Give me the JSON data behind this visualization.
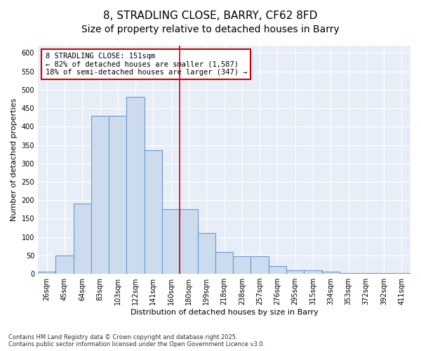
{
  "title": "8, STRADLING CLOSE, BARRY, CF62 8FD",
  "subtitle": "Size of property relative to detached houses in Barry",
  "xlabel": "Distribution of detached houses by size in Barry",
  "ylabel": "Number of detached properties",
  "categories": [
    "26sqm",
    "45sqm",
    "64sqm",
    "83sqm",
    "103sqm",
    "122sqm",
    "141sqm",
    "160sqm",
    "180sqm",
    "199sqm",
    "218sqm",
    "238sqm",
    "257sqm",
    "276sqm",
    "295sqm",
    "315sqm",
    "334sqm",
    "353sqm",
    "372sqm",
    "392sqm",
    "411sqm"
  ],
  "values": [
    5,
    50,
    190,
    430,
    430,
    480,
    335,
    175,
    175,
    110,
    60,
    47,
    47,
    22,
    10,
    10,
    5,
    3,
    3,
    2,
    3
  ],
  "bar_color": "#ccdcee",
  "bar_edge_color": "#6699cc",
  "vline_x": 7.5,
  "vline_color": "#cc0000",
  "annotation_text_line1": "8 STRADLING CLOSE: 151sqm",
  "annotation_text_line2": "← 82% of detached houses are smaller (1,587)",
  "annotation_text_line3": "18% of semi-detached houses are larger (347) →",
  "annotation_box_color": "#cc0000",
  "plot_bg_color": "#e8eef8",
  "fig_bg_color": "#ffffff",
  "ylim": [
    0,
    620
  ],
  "yticks": [
    0,
    50,
    100,
    150,
    200,
    250,
    300,
    350,
    400,
    450,
    500,
    550,
    600
  ],
  "footer": "Contains HM Land Registry data © Crown copyright and database right 2025.\nContains public sector information licensed under the Open Government Licence v3.0.",
  "title_fontsize": 11,
  "subtitle_fontsize": 10,
  "ylabel_fontsize": 8,
  "xlabel_fontsize": 8,
  "tick_fontsize": 7,
  "annotation_fontsize": 7.5,
  "footer_fontsize": 6
}
